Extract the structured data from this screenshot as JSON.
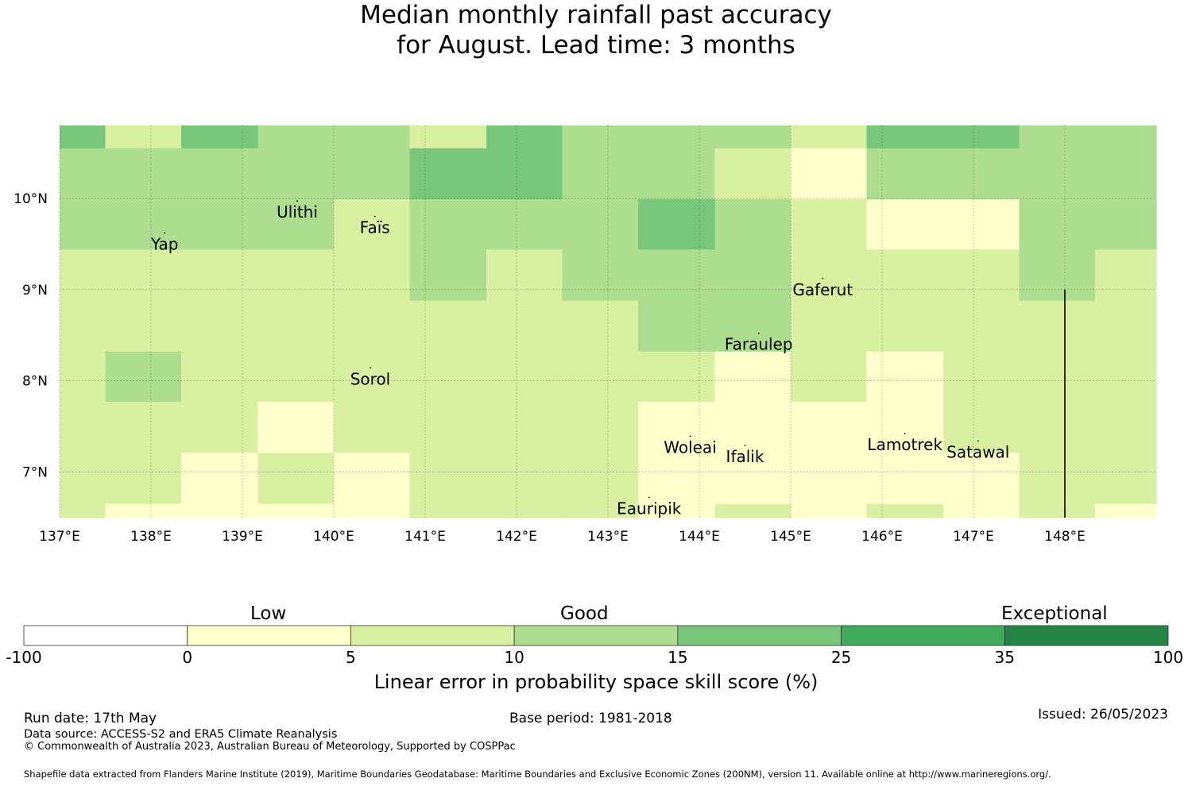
{
  "title": {
    "line1": "Median monthly rainfall past accuracy",
    "line2": "for August. Lead time: 3 months"
  },
  "map": {
    "lon_range": [
      137.0,
      149.0
    ],
    "lat_range": [
      6.5,
      10.8
    ],
    "x_ticks": [
      {
        "value": 137,
        "label": "137°E"
      },
      {
        "value": 138,
        "label": "138°E"
      },
      {
        "value": 139,
        "label": "139°E"
      },
      {
        "value": 140,
        "label": "140°E"
      },
      {
        "value": 141,
        "label": "141°E"
      },
      {
        "value": 142,
        "label": "142°E"
      },
      {
        "value": 143,
        "label": "143°E"
      },
      {
        "value": 144,
        "label": "144°E"
      },
      {
        "value": 145,
        "label": "145°E"
      },
      {
        "value": 146,
        "label": "146°E"
      },
      {
        "value": 147,
        "label": "147°E"
      },
      {
        "value": 148,
        "label": "148°E"
      }
    ],
    "y_ticks": [
      {
        "value": 10,
        "label": "10°N"
      },
      {
        "value": 9,
        "label": "9°N"
      },
      {
        "value": 8,
        "label": "8°N"
      },
      {
        "value": 7,
        "label": "7°N"
      }
    ],
    "grid": true,
    "grid_lon_edges": [
      137.0,
      137.5,
      138.33,
      139.17,
      140.0,
      140.83,
      141.67,
      142.5,
      143.33,
      144.17,
      145.0,
      145.83,
      146.67,
      147.5,
      148.33,
      149.0
    ],
    "grid_lat_edges": [
      10.8,
      10.55,
      9.99,
      9.44,
      8.88,
      8.32,
      7.77,
      7.21,
      6.65,
      6.5
    ],
    "skill_class_grid": [
      [
        3,
        1,
        3,
        2,
        2,
        1,
        3,
        2,
        2,
        2,
        1,
        3,
        3,
        2,
        2
      ],
      [
        2,
        2,
        2,
        2,
        2,
        3,
        3,
        2,
        2,
        1,
        0,
        2,
        2,
        2,
        2
      ],
      [
        2,
        2,
        2,
        2,
        1,
        2,
        2,
        2,
        3,
        2,
        1,
        0,
        0,
        2,
        2
      ],
      [
        1,
        1,
        1,
        1,
        1,
        2,
        1,
        2,
        2,
        2,
        1,
        1,
        1,
        2,
        1
      ],
      [
        1,
        1,
        1,
        1,
        1,
        1,
        1,
        1,
        2,
        2,
        1,
        1,
        1,
        1,
        1
      ],
      [
        1,
        2,
        1,
        1,
        1,
        1,
        1,
        1,
        1,
        0,
        1,
        0,
        1,
        1,
        1
      ],
      [
        1,
        1,
        1,
        0,
        1,
        1,
        1,
        1,
        0,
        0,
        0,
        0,
        1,
        1,
        1
      ],
      [
        1,
        1,
        0,
        1,
        0,
        1,
        1,
        1,
        0,
        0,
        0,
        0,
        0,
        1,
        1
      ],
      [
        1,
        0,
        0,
        0,
        0,
        1,
        1,
        1,
        0,
        1,
        0,
        1,
        0,
        1,
        0
      ]
    ],
    "places": [
      {
        "name": "Yap",
        "lon": 138.15,
        "lat": 9.5
      },
      {
        "name": "Ulithi",
        "lon": 139.6,
        "lat": 9.85
      },
      {
        "name": "Faïs",
        "lon": 140.45,
        "lat": 9.68
      },
      {
        "name": "Gaferut",
        "lon": 145.35,
        "lat": 9.0
      },
      {
        "name": "Faraulep",
        "lon": 144.65,
        "lat": 8.4
      },
      {
        "name": "Sorol",
        "lon": 140.4,
        "lat": 8.02
      },
      {
        "name": "Woleai",
        "lon": 143.9,
        "lat": 7.27
      },
      {
        "name": "Ifalik",
        "lon": 144.5,
        "lat": 7.17
      },
      {
        "name": "Lamotrek",
        "lon": 146.25,
        "lat": 7.3
      },
      {
        "name": "Satawal",
        "lon": 147.05,
        "lat": 7.22
      },
      {
        "name": "Eauripik",
        "lon": 143.45,
        "lat": 6.6
      }
    ],
    "boundary_line": {
      "lon": 148.0,
      "lat_from": 9.0,
      "lat_to": 6.5
    }
  },
  "colorbar": {
    "categories": [
      {
        "label": "Low"
      },
      {
        "label": "Good"
      },
      {
        "label": "Exceptional"
      }
    ],
    "ticks": [
      "-100",
      "0",
      "5",
      "10",
      "15",
      "25",
      "35",
      "100"
    ],
    "colors": [
      "#ffffff",
      "#ffffcc",
      "#d9f0a3",
      "#addd8e",
      "#78c679",
      "#41ab5d",
      "#238443"
    ],
    "title": "Linear error in probability space skill score (%)"
  },
  "footer": {
    "run_date": "Run date: 17th May",
    "base_period": "Base period: 1981-2018",
    "issued": "Issued: 26/05/2023",
    "data_source": "Data source: ACCESS-S2 and ERA5 Climate Reanalysis",
    "copyright": "© Commonwealth of Australia 2023, Australian Bureau of Meteorology, Supported by COSPPac",
    "shapefile": "Shapefile data extracted from Flanders Marine Institute (2019), Maritime Boundaries Geodatabase: Maritime Boundaries and Exclusive Economic Zones (200NM), version 11. Available online at http://www.marineregions.org/."
  }
}
